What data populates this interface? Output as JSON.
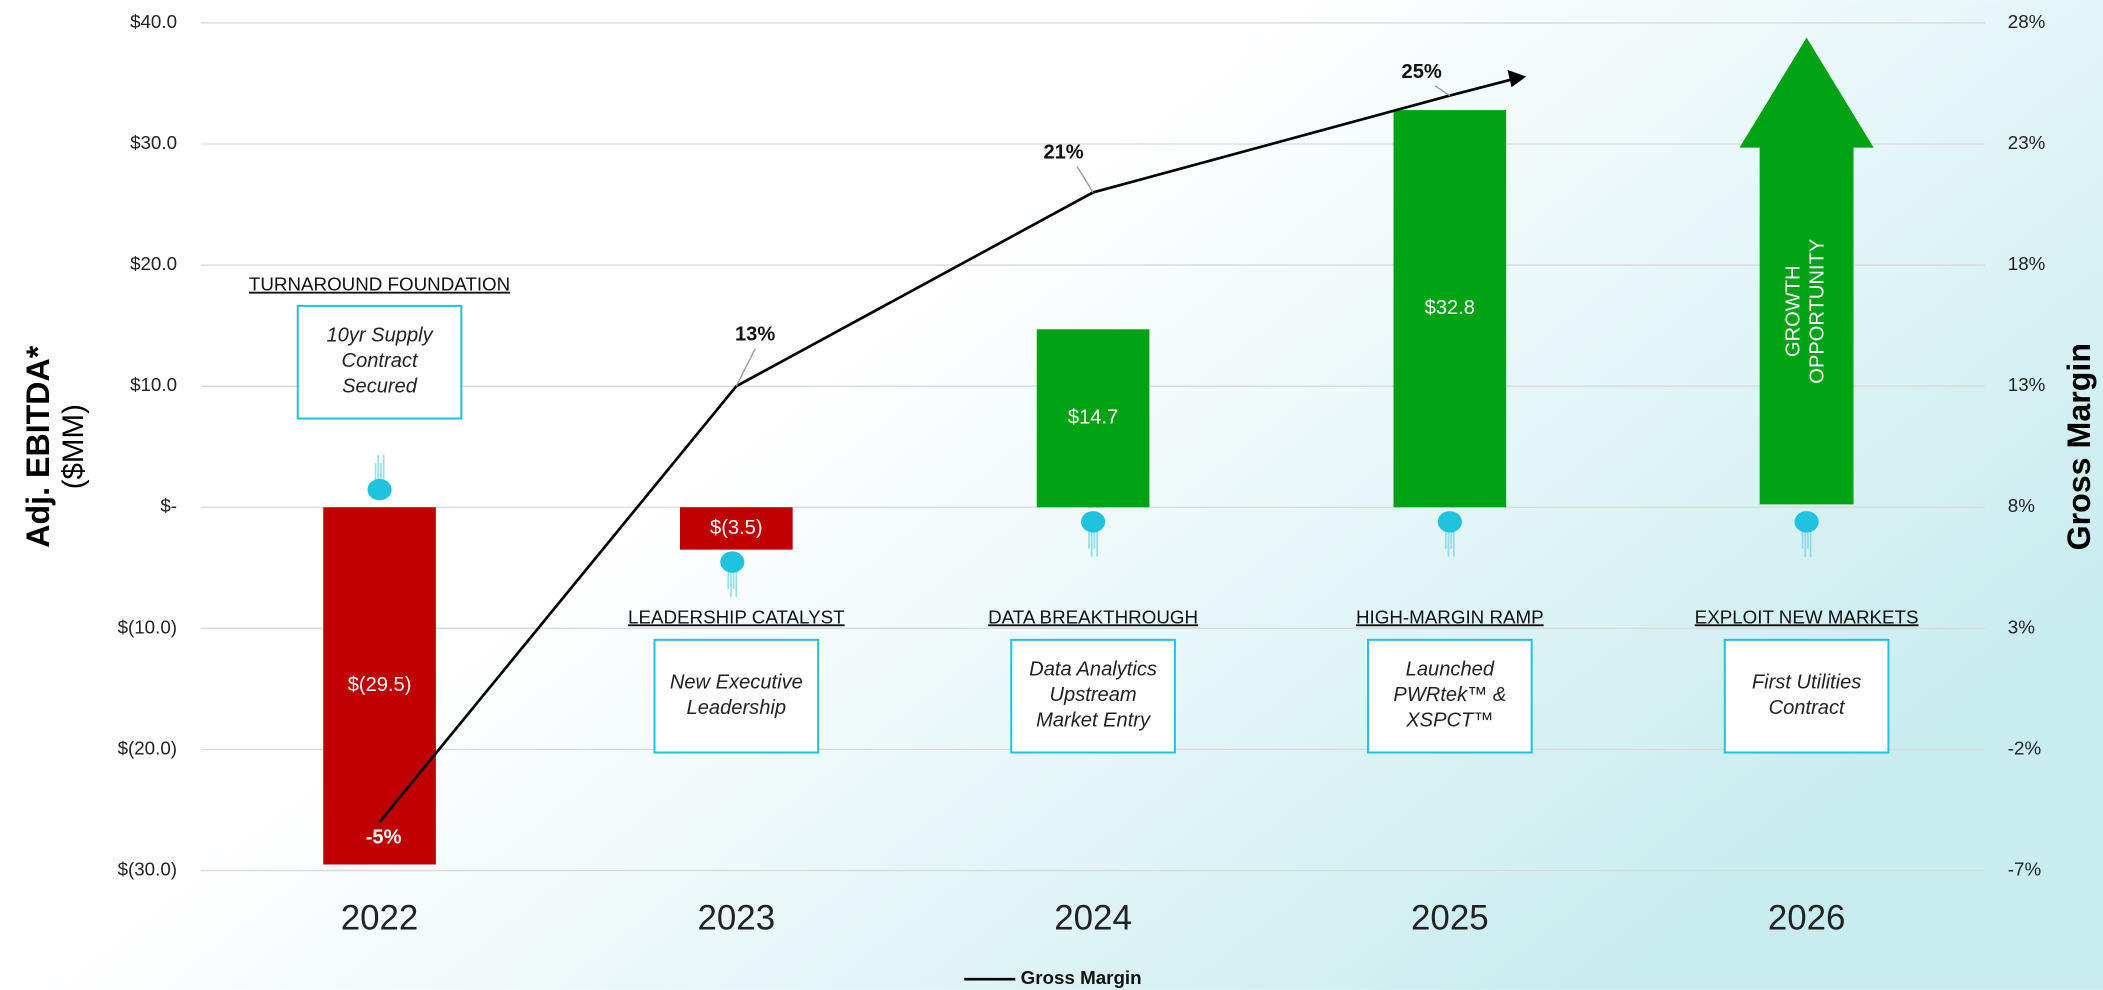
{
  "chart_data": {
    "type": "bar",
    "categories": [
      "2022",
      "2023",
      "2024",
      "2025",
      "2026"
    ],
    "values": [
      -29.5,
      -3.5,
      14.7,
      32.8,
      null
    ],
    "value_labels": [
      "$(29.5)",
      "$(3.5)",
      "$14.7",
      "$32.8",
      null
    ],
    "colors": [
      "#c00000",
      "#c00000",
      "#00a313",
      "#00a313",
      "#00a313"
    ],
    "ylim": [
      -30,
      40
    ],
    "yticks": [
      {
        "value": -30,
        "label": "$(30.0)"
      },
      {
        "value": -20,
        "label": "$(20.0)"
      },
      {
        "value": -10,
        "label": "$(10.0)"
      },
      {
        "value": 0,
        "label": "$-"
      },
      {
        "value": 10,
        "label": "$10.0"
      },
      {
        "value": 20,
        "label": "$20.0"
      },
      {
        "value": 30,
        "label": "$30.0"
      },
      {
        "value": 40,
        "label": "$40.0"
      }
    ],
    "y2lim": [
      -7,
      28
    ],
    "y2ticks": [
      {
        "value": -7,
        "label": "-7%"
      },
      {
        "value": -2,
        "label": "-2%"
      },
      {
        "value": 3,
        "label": "3%"
      },
      {
        "value": 8,
        "label": "8%"
      },
      {
        "value": 13,
        "label": "13%"
      },
      {
        "value": 18,
        "label": "18%"
      },
      {
        "value": 23,
        "label": "23%"
      },
      {
        "value": 28,
        "label": "28%"
      }
    ],
    "grid": true,
    "y_label": [
      "Adj. EBITDA*",
      "($MM)"
    ],
    "y2_label": "Gross Margin",
    "series": [
      {
        "name": "Gross Margin",
        "color": "#000000",
        "axis": "y2",
        "values": [
          -5,
          13,
          21,
          25,
          null
        ],
        "value_labels": [
          "-5%",
          "13%",
          "21%",
          "25%",
          null
        ]
      }
    ],
    "growth_label": [
      "GROWTH",
      "OPPORTUNITY"
    ],
    "legend": "bottom",
    "milestones": [
      {
        "title": "TURNAROUND FOUNDATION",
        "text": [
          "10yr Supply",
          "Contract",
          "Secured"
        ]
      },
      {
        "title": "LEADERSHIP CATALYST",
        "text": [
          "New Executive",
          "Leadership"
        ]
      },
      {
        "title": "DATA BREAKTHROUGH",
        "text": [
          "Data Analytics",
          "Upstream",
          "Market Entry"
        ]
      },
      {
        "title": "HIGH-MARGIN RAMP",
        "text": [
          "Launched",
          "PWRtek™ &",
          "XSPCT™"
        ]
      },
      {
        "title": "EXPLOIT NEW MARKETS",
        "text": [
          "First Utilities",
          "Contract"
        ]
      }
    ]
  }
}
